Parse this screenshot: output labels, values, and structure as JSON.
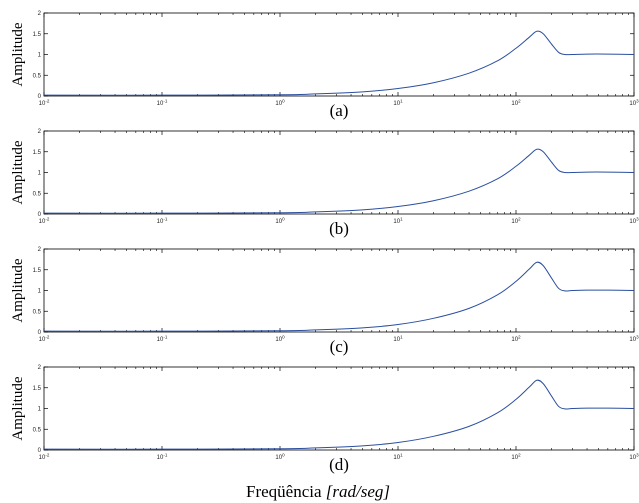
{
  "figure": {
    "xlabel_prefix": "Freqüência ",
    "xlabel_math": "[rad/seg]"
  },
  "chart_data": [
    {
      "type": "line",
      "panel_label": "(a)",
      "ylabel": "Amplitude",
      "xscale": "log",
      "xlim": [
        0.01,
        1000
      ],
      "ylim": [
        0,
        2
      ],
      "x_ticks": [
        0.01,
        0.1,
        1,
        10,
        100,
        1000
      ],
      "x_tick_labels": [
        "10-2",
        "10-1",
        "100",
        "101",
        "102",
        "103"
      ],
      "y_ticks": [
        0,
        0.5,
        1,
        1.5,
        2
      ],
      "y_tick_labels": [
        "0",
        "0.5",
        "1",
        "1.5",
        "2"
      ],
      "grid": false,
      "line_color": "#2b4fa0",
      "series": [
        {
          "x": [
            0.01,
            0.1,
            1,
            2,
            5,
            10,
            20,
            40,
            70,
            100,
            130,
            150,
            170,
            200,
            230,
            260,
            300,
            400,
            600,
            1000
          ],
          "y": [
            0.02,
            0.02,
            0.03,
            0.05,
            0.1,
            0.18,
            0.32,
            0.55,
            0.85,
            1.15,
            1.42,
            1.56,
            1.5,
            1.25,
            1.05,
            1.0,
            1.0,
            1.01,
            1.01,
            1.0
          ]
        }
      ]
    },
    {
      "type": "line",
      "panel_label": "(b)",
      "ylabel": "Amplitude",
      "xscale": "log",
      "xlim": [
        0.01,
        1000
      ],
      "ylim": [
        0,
        2
      ],
      "x_ticks": [
        0.01,
        0.1,
        1,
        10,
        100,
        1000
      ],
      "x_tick_labels": [
        "10-2",
        "10-1",
        "100",
        "101",
        "102",
        "103"
      ],
      "y_ticks": [
        0,
        0.5,
        1,
        1.5,
        2
      ],
      "y_tick_labels": [
        "0",
        "0.5",
        "1",
        "1.5",
        "2"
      ],
      "grid": false,
      "line_color": "#2b4fa0",
      "series": [
        {
          "x": [
            0.01,
            0.1,
            1,
            2,
            5,
            10,
            20,
            40,
            70,
            100,
            130,
            150,
            170,
            200,
            230,
            260,
            300,
            400,
            600,
            1000
          ],
          "y": [
            0.02,
            0.02,
            0.03,
            0.05,
            0.1,
            0.18,
            0.32,
            0.55,
            0.85,
            1.15,
            1.42,
            1.56,
            1.5,
            1.25,
            1.05,
            1.0,
            1.0,
            1.01,
            1.01,
            1.0
          ]
        }
      ]
    },
    {
      "type": "line",
      "panel_label": "(c)",
      "ylabel": "Amplitude",
      "xscale": "log",
      "xlim": [
        0.01,
        1000
      ],
      "ylim": [
        0,
        2
      ],
      "x_ticks": [
        0.01,
        0.1,
        1,
        10,
        100,
        1000
      ],
      "x_tick_labels": [
        "10-2",
        "10-1",
        "100",
        "101",
        "102",
        "103"
      ],
      "y_ticks": [
        0,
        0.5,
        1,
        1.5,
        2
      ],
      "y_tick_labels": [
        "0",
        "0.5",
        "1",
        "1.5",
        "2"
      ],
      "grid": false,
      "line_color": "#2b4fa0",
      "series": [
        {
          "x": [
            0.01,
            0.1,
            1,
            2,
            5,
            10,
            20,
            40,
            70,
            100,
            130,
            150,
            170,
            200,
            230,
            260,
            300,
            400,
            600,
            1000
          ],
          "y": [
            0.02,
            0.02,
            0.03,
            0.05,
            0.1,
            0.18,
            0.33,
            0.57,
            0.9,
            1.22,
            1.52,
            1.68,
            1.6,
            1.3,
            1.05,
            0.99,
            1.0,
            1.01,
            1.01,
            1.0
          ]
        }
      ]
    },
    {
      "type": "line",
      "panel_label": "(d)",
      "ylabel": "Amplitude",
      "xscale": "log",
      "xlim": [
        0.01,
        1000
      ],
      "ylim": [
        0,
        2
      ],
      "x_ticks": [
        0.01,
        0.1,
        1,
        10,
        100,
        1000
      ],
      "x_tick_labels": [
        "10-2",
        "10-1",
        "100",
        "101",
        "102",
        "103"
      ],
      "y_ticks": [
        0,
        0.5,
        1,
        1.5,
        2
      ],
      "y_tick_labels": [
        "0",
        "0.5",
        "1",
        "1.5",
        "2"
      ],
      "grid": false,
      "line_color": "#2b4fa0",
      "series": [
        {
          "x": [
            0.01,
            0.1,
            1,
            2,
            5,
            10,
            20,
            40,
            70,
            100,
            130,
            150,
            170,
            200,
            230,
            260,
            300,
            400,
            600,
            1000
          ],
          "y": [
            0.02,
            0.02,
            0.03,
            0.05,
            0.1,
            0.18,
            0.33,
            0.57,
            0.9,
            1.22,
            1.52,
            1.68,
            1.6,
            1.3,
            1.05,
            0.99,
            1.0,
            1.01,
            1.01,
            1.0
          ]
        }
      ]
    }
  ]
}
